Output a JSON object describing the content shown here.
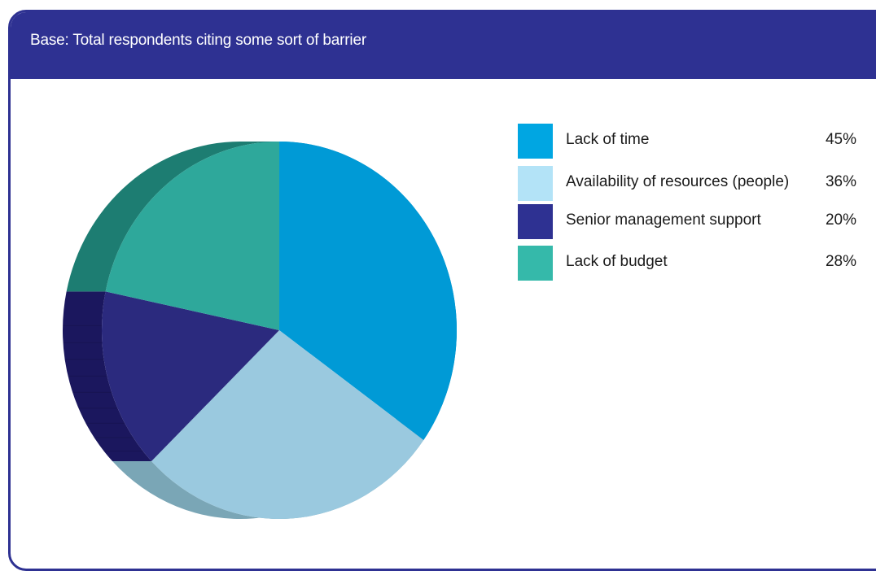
{
  "panel": {
    "title": "Base: Total respondents citing some sort of barrier",
    "border_color": "#2e3192"
  },
  "chart_data": {
    "type": "pie",
    "title": "Base: Total respondents citing some sort of barrier",
    "categories": [
      "Lack of time",
      "Availability of resources (people)",
      "Senior management support",
      "Lack of budget"
    ],
    "values": [
      45,
      36,
      20,
      28
    ],
    "value_labels": [
      "45%",
      "36%",
      "20%",
      "28%"
    ],
    "legend_colors": [
      "#00a6e2",
      "#b3e3f7",
      "#2e3192",
      "#35b9aa"
    ],
    "slice_colors": [
      "#009ad6",
      "#9ac9df",
      "#2b2a7e",
      "#2ea89b"
    ],
    "side_colors": [
      "#007eb4",
      "#7aa6b6",
      "#1b175e",
      "#1d7d72"
    ],
    "legend_placement": "right",
    "style": "3d-tilted"
  }
}
